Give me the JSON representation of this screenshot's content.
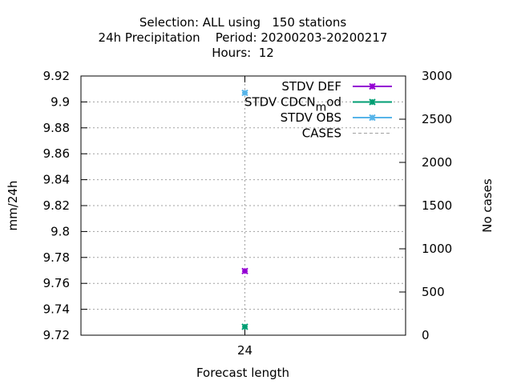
{
  "chart_data": {
    "type": "scatter",
    "title_lines": [
      "Selection: ALL using   150 stations",
      "24h Precipitation    Period: 20200203-20200217",
      "Hours:  12"
    ],
    "xlabel": "Forecast length",
    "ylabel": "mm/24h",
    "y2label": "No cases",
    "categories": [
      "24"
    ],
    "ylim": [
      9.72,
      9.92
    ],
    "yticks": [
      "9.72",
      "9.74",
      "9.76",
      "9.78",
      "9.8",
      "9.82",
      "9.84",
      "9.86",
      "9.88",
      "9.9",
      "9.92"
    ],
    "y2lim": [
      0,
      3000
    ],
    "y2ticks": [
      "0",
      "500",
      "1000",
      "1500",
      "2000",
      "2500",
      "3000"
    ],
    "grid": true,
    "legend_position": "top-right",
    "series": [
      {
        "name": "STDV DEF",
        "values": [
          9.7695
        ],
        "color": "#9400d3",
        "marker": "x"
      },
      {
        "name": "STDV CDCN_mod",
        "label_main": "STDV CDCN",
        "label_sub": "m",
        "label_tail": "od",
        "values": [
          9.7265
        ],
        "color": "#009e73",
        "marker": "x"
      },
      {
        "name": "STDV OBS",
        "values": [
          9.907
        ],
        "color": "#56b4e9",
        "marker": "x"
      },
      {
        "name": "CASES",
        "values": [
          null
        ],
        "color": "#a0a0a0",
        "marker": "none",
        "axis": "y2"
      }
    ]
  }
}
